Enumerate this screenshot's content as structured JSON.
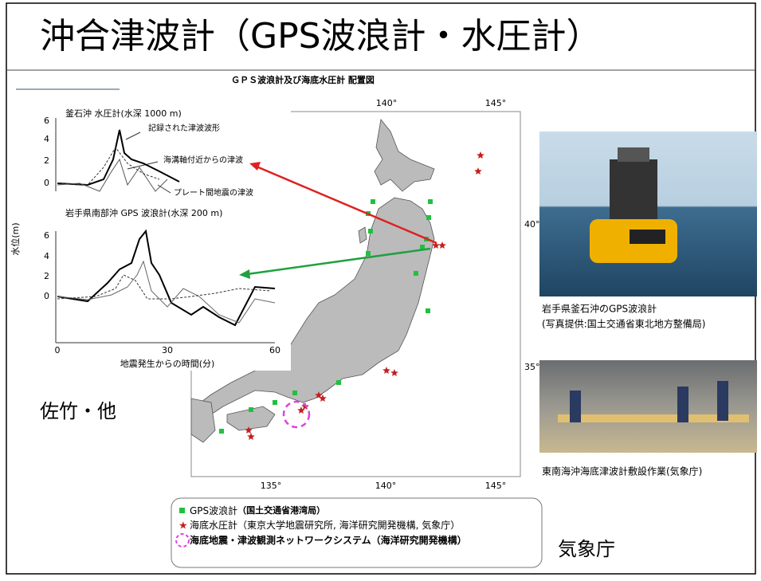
{
  "title": "沖合津波計（GPS波浪計・水圧計）",
  "map": {
    "title": "ＧＰＳ波浪計及び海底水圧計 配置図",
    "lon_labels_top": [
      "140°",
      "145°"
    ],
    "lat_labels": [
      "40°",
      "35°"
    ],
    "lon_labels_bottom": [
      "135°",
      "140°",
      "145°"
    ],
    "legend": [
      {
        "label": "GPS波浪計",
        "org": "（国土交通省港湾局）"
      },
      {
        "label": "海底水圧計",
        "org": "（東京大学地震研究所, 海洋研究開発機構, 気象庁）"
      },
      {
        "label": "",
        "org": "海底地震・津波観測ネットワークシステム（海洋研究開発機構）"
      }
    ]
  },
  "inset": {
    "panel1_title": "釜石沖 水圧計(水深 1000 m)",
    "annotations": [
      "記録された津波波形",
      "海溝軸付近からの津波",
      "プレート間地震の津波"
    ],
    "panel2_title": "岩手県南部沖 GPS 波浪計(水深 200 m)",
    "y_label": "水位(m)",
    "yticks_top": [
      6,
      4,
      2,
      0
    ],
    "yticks_bottom": [
      6,
      4,
      2,
      0
    ],
    "xticks": [
      0,
      30,
      60
    ],
    "x_label": "地震発生からの時間(分)",
    "credit": "佐竹・他"
  },
  "photos": [
    {
      "caption": [
        "岩手県釜石沖のGPS波浪計",
        "(写真提供:国土交通省東北地方整備局)"
      ]
    },
    {
      "caption": [
        "東南海沖海底津波計敷設作業(気象庁)"
      ]
    }
  ],
  "source": "気象庁"
}
